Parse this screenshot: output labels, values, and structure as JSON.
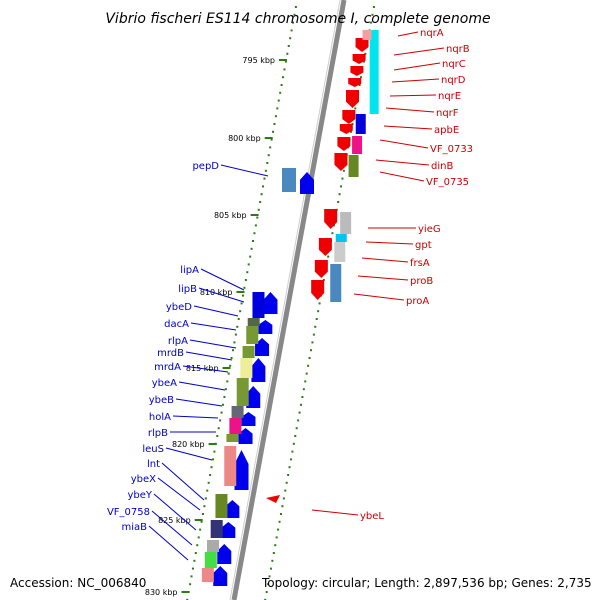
{
  "title": "Vibrio fischeri ES114 chromosome I, complete genome",
  "footer": {
    "accession": "Accession: NC_006840",
    "summary": "Topology: circular; Length: 2,897,536 bp; Genes: 2,735"
  },
  "colors": {
    "forward_label": "#0000cc",
    "reverse_label": "#cc0000",
    "backbone": "#888888",
    "tick": "#2a7d14",
    "forward_arrow": "#0000ee",
    "reverse_arrow": "#ee0000"
  },
  "kbp_labels": [
    "795 kbp",
    "800 kbp",
    "805 kbp",
    "810 kbp",
    "815 kbp",
    "820 kbp",
    "825 kbp",
    "830 kbp"
  ],
  "genes_reverse": [
    "nqrA",
    "nqrB",
    "nqrC",
    "nqrD",
    "nqrE",
    "nqrF",
    "apbE",
    "VF_0733",
    "dinB",
    "VF_0735",
    "yieG",
    "gpt",
    "frsA",
    "proB",
    "proA",
    "ybeL"
  ],
  "genes_forward": [
    "pepD",
    "lipA",
    "lipB",
    "ybeD",
    "dacA",
    "rlpA",
    "mrdB",
    "mrdA",
    "ybeA",
    "ybeB",
    "holA",
    "rlpB",
    "leuS",
    "lnt",
    "ybeX",
    "ybeY",
    "VF_0758",
    "miaB"
  ]
}
